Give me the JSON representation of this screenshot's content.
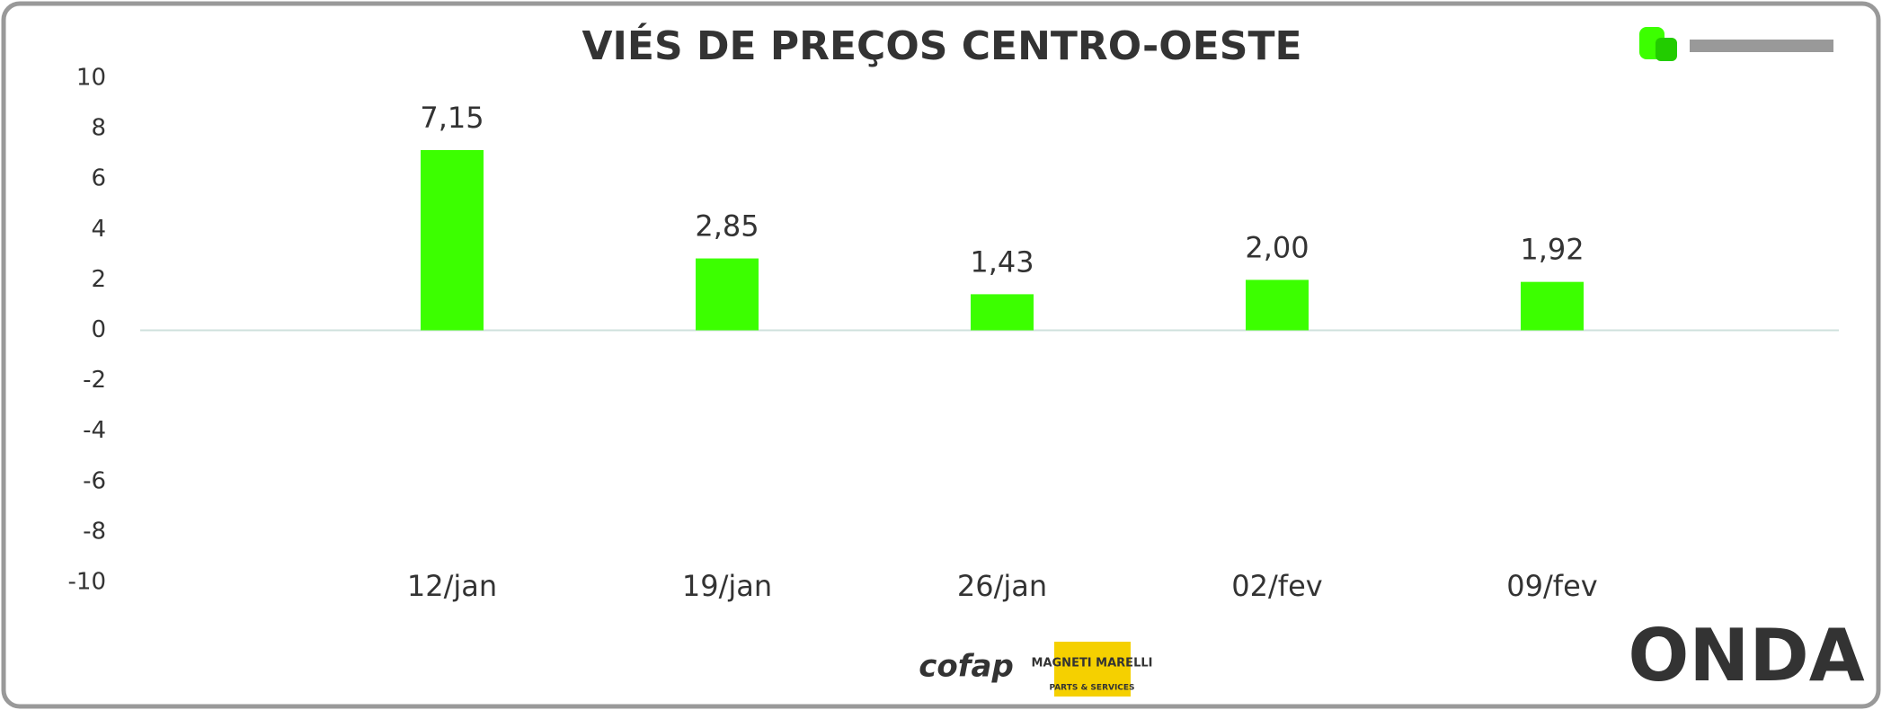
{
  "chart_data": {
    "type": "bar",
    "title": "VIÉS DE PREÇOS CENTRO-OESTE",
    "categories": [
      "12/jan",
      "19/jan",
      "26/jan",
      "02/fev",
      "09/fev"
    ],
    "values": [
      7.15,
      2.85,
      1.43,
      2.0,
      1.92
    ],
    "value_labels": [
      "7,15",
      "2,85",
      "1,43",
      "2,00",
      "1,92"
    ],
    "color": "#3cff00",
    "ylim": [
      -10,
      10
    ],
    "yticks": [
      -10,
      -8,
      -6,
      -4,
      -2,
      0,
      2,
      4,
      6,
      8,
      10
    ],
    "grid": false
  },
  "logos": {
    "sponsor_1": "cofap",
    "sponsor_2_top": "MAGNETI MARELLI",
    "sponsor_2_bottom": "PARTS & SERVICES",
    "brand": "ONDA"
  }
}
